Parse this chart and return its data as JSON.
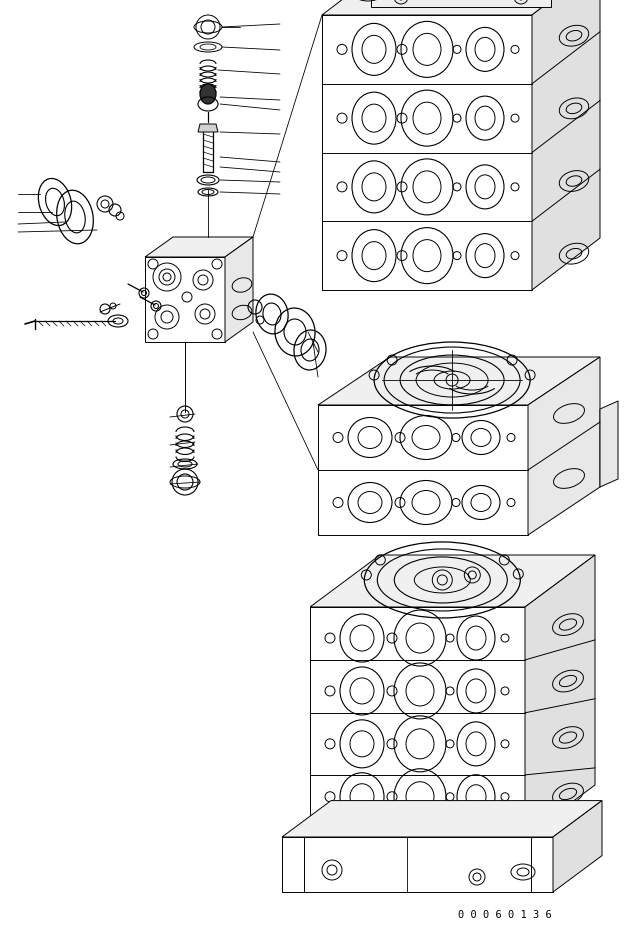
{
  "background_color": "#ffffff",
  "line_color": "#000000",
  "figure_width": 6.26,
  "figure_height": 9.32,
  "dpi": 100,
  "part_number": "0 0 0 6 0 1 3 6"
}
